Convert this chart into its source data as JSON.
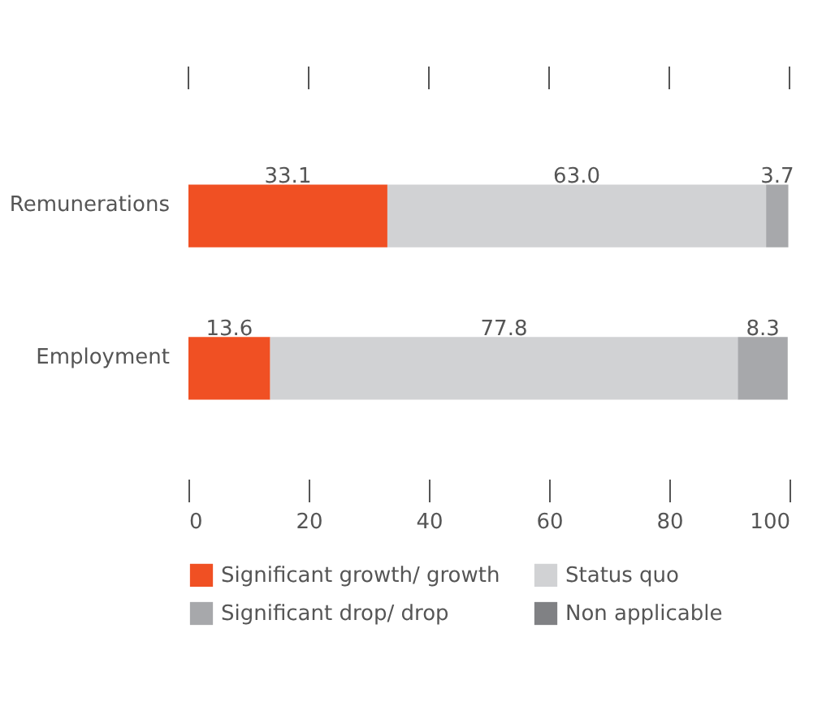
{
  "chart_data": {
    "type": "bar",
    "orientation": "horizontal",
    "stacked": true,
    "categories": [
      "Remunerations",
      "Employment"
    ],
    "series": [
      {
        "name": "Significant growth/ growth",
        "color": "#f05023",
        "values": [
          33.1,
          13.6
        ],
        "value_labels": [
          "33.1",
          "13.6"
        ]
      },
      {
        "name": "Status quo",
        "color": "#d1d2d4",
        "values": [
          63.0,
          77.8
        ],
        "value_labels": [
          "63.0",
          "77.8"
        ]
      },
      {
        "name": "Significant drop/ drop",
        "color": "#a7a8ab",
        "values": [
          3.7,
          8.3
        ],
        "value_labels": [
          "3.7",
          "8.3"
        ]
      },
      {
        "name": "Non applicable",
        "color": "#808184",
        "values": [
          null,
          null
        ]
      }
    ],
    "xlim": [
      0,
      100
    ],
    "xticks": [
      0,
      20,
      40,
      60,
      80,
      100
    ],
    "grid": false,
    "legend": "bottom"
  }
}
